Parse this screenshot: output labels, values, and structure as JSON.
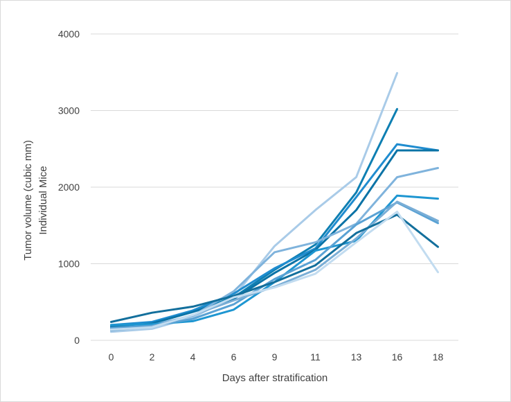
{
  "chart_data": {
    "type": "line",
    "title": "",
    "xlabel": "Days after stratification",
    "ylabel_lines": [
      "Tumor volume (cubic mm)",
      "Individual Mice"
    ],
    "categories": [
      "0",
      "2",
      "4",
      "6",
      "9",
      "11",
      "13",
      "16",
      "18"
    ],
    "ylim": [
      0,
      4000
    ],
    "yticks": [
      0,
      1000,
      2000,
      3000,
      4000
    ],
    "grid": true,
    "legend": "none",
    "series": [
      {
        "color": "#a9cbe8",
        "values": [
          110,
          150,
          300,
          570,
          1230,
          1700,
          2130,
          3490,
          null
        ]
      },
      {
        "color": "#0e7fb2",
        "values": [
          180,
          230,
          380,
          560,
          920,
          1250,
          1930,
          3020,
          null
        ]
      },
      {
        "color": "#1f8ccf",
        "values": [
          200,
          240,
          390,
          610,
          940,
          1200,
          1870,
          2560,
          2480
        ]
      },
      {
        "color": "#0b73a6",
        "values": [
          170,
          220,
          370,
          540,
          880,
          1180,
          1700,
          2480,
          2480
        ]
      },
      {
        "color": "#7fb3dc",
        "values": [
          150,
          200,
          320,
          640,
          1150,
          1280,
          1520,
          2130,
          2250
        ]
      },
      {
        "color": "#1e96d1",
        "values": [
          200,
          210,
          250,
          400,
          760,
          1170,
          1300,
          1890,
          1850
        ]
      },
      {
        "color": "#5aa2d4",
        "values": [
          160,
          190,
          280,
          470,
          800,
          1050,
          1510,
          1800,
          1530
        ]
      },
      {
        "color": "#7aaed6",
        "values": [
          130,
          180,
          330,
          520,
          700,
          920,
          1330,
          1810,
          1560
        ]
      },
      {
        "color": "#136f9c",
        "values": [
          240,
          360,
          440,
          580,
          760,
          980,
          1400,
          1640,
          1220
        ]
      },
      {
        "color": "#c2dcf0",
        "values": [
          140,
          170,
          330,
          560,
          690,
          870,
          1280,
          1680,
          890
        ]
      }
    ]
  }
}
